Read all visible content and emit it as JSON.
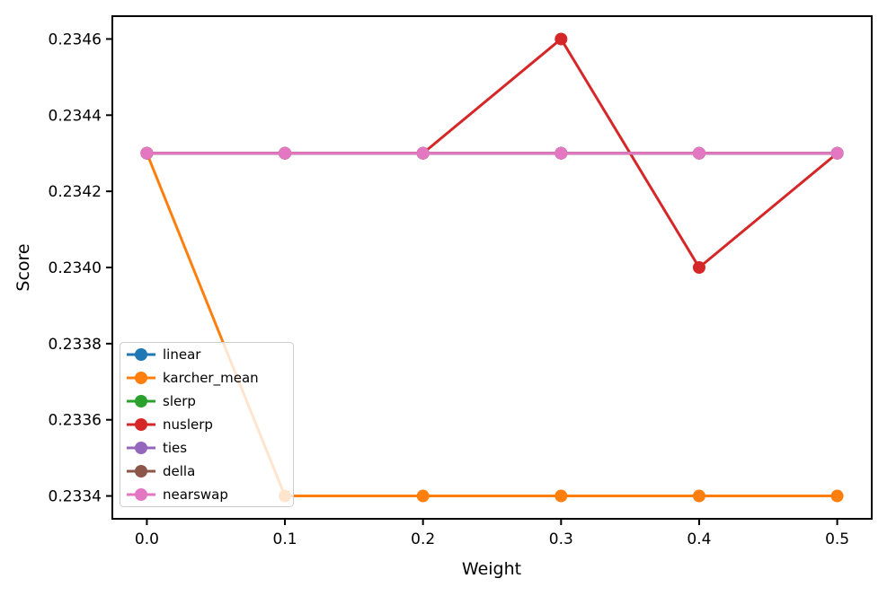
{
  "chart_data": {
    "type": "line",
    "title": "",
    "xlabel": "Weight",
    "ylabel": "Score",
    "grid": false,
    "legend_position": "lower left",
    "x": [
      0.0,
      0.1,
      0.2,
      0.3,
      0.4,
      0.5
    ],
    "xlim": [
      -0.025,
      0.525
    ],
    "ylim": [
      0.23334,
      0.23466
    ],
    "xtick_values": [
      0.0,
      0.1,
      0.2,
      0.3,
      0.4,
      0.5
    ],
    "xtick_labels": [
      "0.0",
      "0.1",
      "0.2",
      "0.3",
      "0.4",
      "0.5"
    ],
    "ytick_values": [
      0.2334,
      0.2336,
      0.2338,
      0.234,
      0.2342,
      0.2344,
      0.2346
    ],
    "ytick_labels": [
      "0.2334",
      "0.2336",
      "0.2338",
      "0.2340",
      "0.2342",
      "0.2344",
      "0.2346"
    ],
    "series": [
      {
        "name": "linear",
        "color": "#1f77b4",
        "values": [
          0.2343,
          0.2343,
          0.2343,
          0.2343,
          0.2343,
          0.2343
        ]
      },
      {
        "name": "karcher_mean",
        "color": "#ff7f0e",
        "values": [
          0.2343,
          0.2334,
          0.2334,
          0.2334,
          0.2334,
          0.2334
        ]
      },
      {
        "name": "slerp",
        "color": "#2ca02c",
        "values": [
          0.2343,
          0.2343,
          0.2343,
          0.2343,
          0.2343,
          0.2343
        ]
      },
      {
        "name": "nuslerp",
        "color": "#d62728",
        "values": [
          0.2343,
          0.2343,
          0.2343,
          0.2346,
          0.234,
          0.2343
        ]
      },
      {
        "name": "ties",
        "color": "#9467bd",
        "values": [
          0.2343,
          0.2343,
          0.2343,
          0.2343,
          0.2343,
          0.2343
        ]
      },
      {
        "name": "della",
        "color": "#8c564b",
        "values": [
          0.2343,
          0.2343,
          0.2343,
          0.2343,
          0.2343,
          0.2343
        ]
      },
      {
        "name": "nearswap",
        "color": "#e377c2",
        "values": [
          0.2343,
          0.2343,
          0.2343,
          0.2343,
          0.2343,
          0.2343
        ]
      }
    ]
  }
}
